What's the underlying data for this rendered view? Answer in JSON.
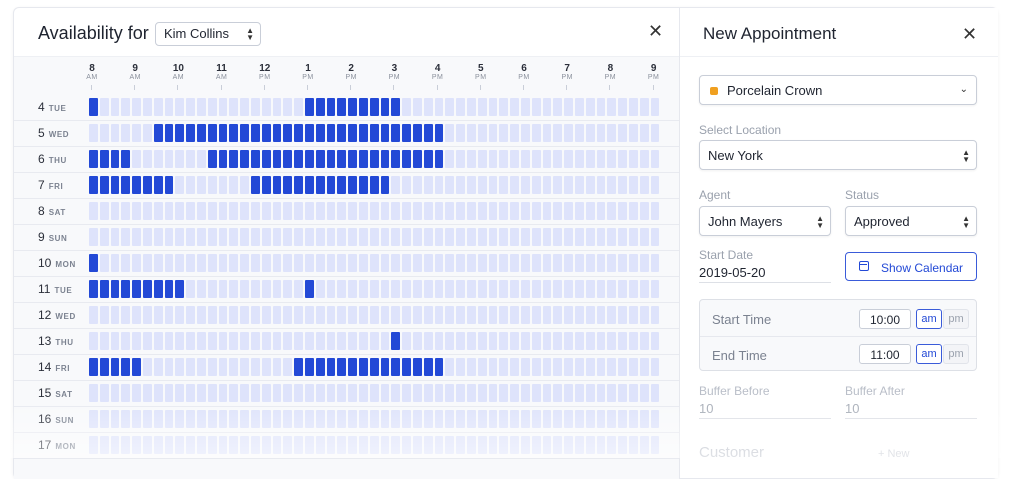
{
  "availability": {
    "title": "Availability for",
    "agent_selected": "Kim Collins",
    "close_icon": "close-icon",
    "hours": [
      {
        "num": "8",
        "ampm": "AM"
      },
      {
        "num": "9",
        "ampm": "AM"
      },
      {
        "num": "10",
        "ampm": "AM"
      },
      {
        "num": "11",
        "ampm": "AM"
      },
      {
        "num": "12",
        "ampm": "PM"
      },
      {
        "num": "1",
        "ampm": "PM"
      },
      {
        "num": "2",
        "ampm": "PM"
      },
      {
        "num": "3",
        "ampm": "PM"
      },
      {
        "num": "4",
        "ampm": "PM"
      },
      {
        "num": "5",
        "ampm": "PM"
      },
      {
        "num": "6",
        "ampm": "PM"
      },
      {
        "num": "7",
        "ampm": "PM"
      },
      {
        "num": "8",
        "ampm": "PM"
      },
      {
        "num": "9",
        "ampm": "PM"
      }
    ],
    "days": [
      {
        "num": "4",
        "day": "TUE",
        "busy": [
          [
            0,
            1
          ],
          [
            20,
            29
          ]
        ]
      },
      {
        "num": "5",
        "day": "WED",
        "busy": [
          [
            6,
            33
          ]
        ]
      },
      {
        "num": "6",
        "day": "THU",
        "busy": [
          [
            0,
            4
          ],
          [
            11,
            33
          ]
        ]
      },
      {
        "num": "7",
        "day": "FRI",
        "busy": [
          [
            0,
            8
          ],
          [
            15,
            28
          ]
        ]
      },
      {
        "num": "8",
        "day": "SAT",
        "busy": []
      },
      {
        "num": "9",
        "day": "SUN",
        "busy": []
      },
      {
        "num": "10",
        "day": "MON",
        "busy": [
          [
            0,
            1
          ]
        ]
      },
      {
        "num": "11",
        "day": "TUE",
        "busy": [
          [
            0,
            9
          ],
          [
            20,
            21
          ]
        ]
      },
      {
        "num": "12",
        "day": "WED",
        "busy": []
      },
      {
        "num": "13",
        "day": "THU",
        "busy": [
          [
            28,
            29
          ]
        ]
      },
      {
        "num": "14",
        "day": "FRI",
        "busy": [
          [
            0,
            5
          ],
          [
            19,
            33
          ]
        ]
      },
      {
        "num": "15",
        "day": "SAT",
        "busy": []
      },
      {
        "num": "16",
        "day": "SUN",
        "busy": []
      },
      {
        "num": "17",
        "day": "MON",
        "busy": []
      }
    ],
    "slots_per_row": 53
  },
  "appointment": {
    "title": "New Appointment",
    "service": "Porcelain Crown",
    "service_color": "#f0a020",
    "location_label": "Select Location",
    "location_value": "New York",
    "agent_label": "Agent",
    "agent_value": "John Mayers",
    "status_label": "Status",
    "status_value": "Approved",
    "start_date_label": "Start Date",
    "start_date_value": "2019-05-20",
    "show_calendar": "Show Calendar",
    "start_time_label": "Start Time",
    "start_time_value": "10:00",
    "end_time_label": "End Time",
    "end_time_value": "11:00",
    "am": "am",
    "pm": "pm",
    "buffer_before_label": "Buffer Before",
    "buffer_before_value": "10",
    "buffer_after_label": "Buffer After",
    "buffer_after_value": "10",
    "customer_label": "Customer",
    "new_link": "+ New"
  },
  "colors": {
    "busy": "#2349d6",
    "free": "#dee3fb",
    "accent": "#3a5bd9"
  }
}
